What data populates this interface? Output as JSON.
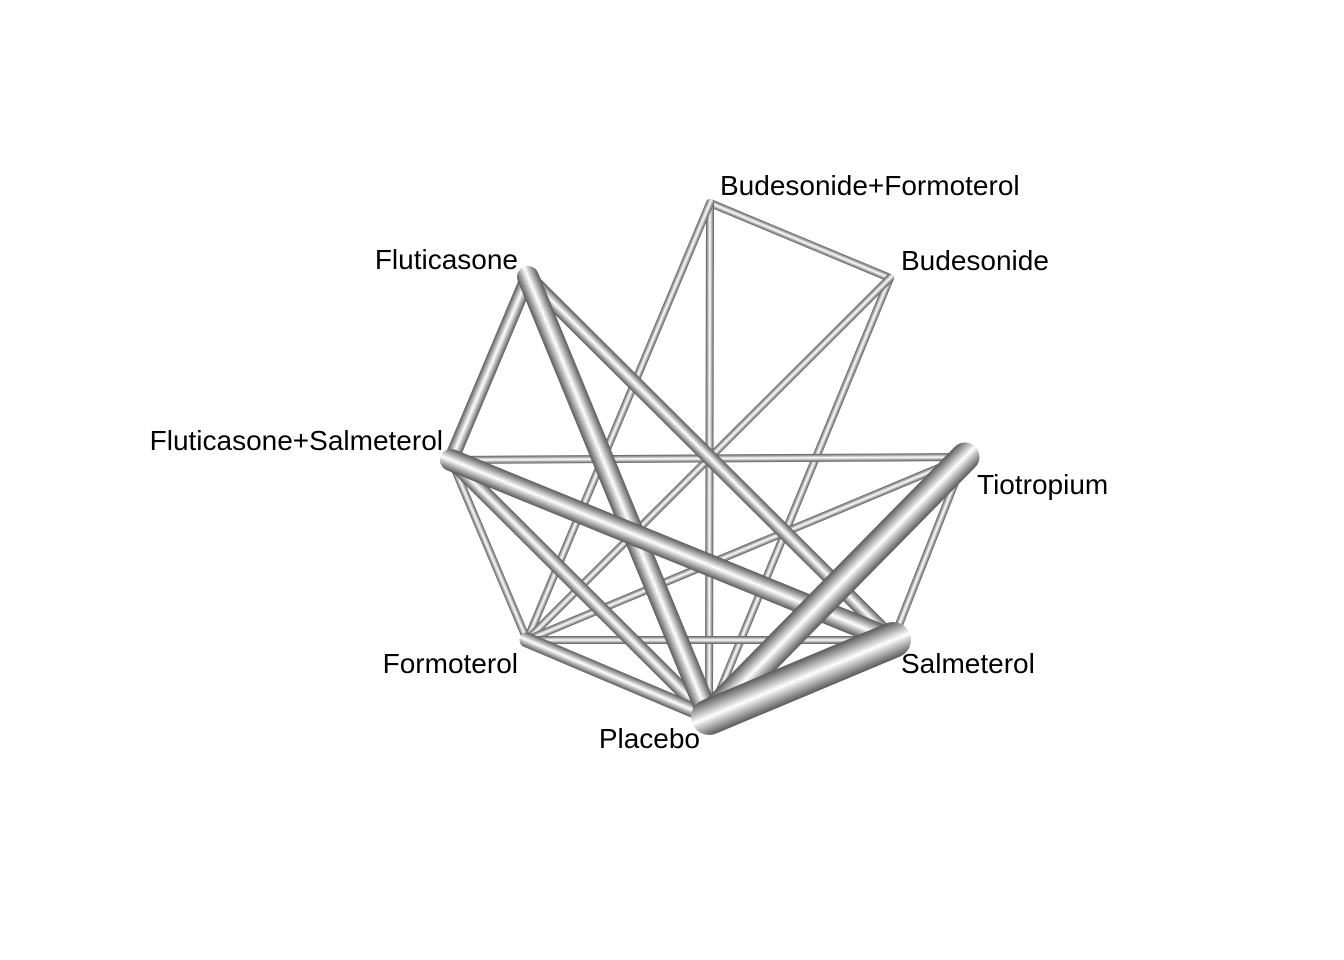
{
  "diagram": {
    "type": "network",
    "nodes": [
      {
        "id": "bud_form",
        "label": "Budesonide+Formoterol"
      },
      {
        "id": "bud",
        "label": "Budesonide"
      },
      {
        "id": "flut",
        "label": "Fluticasone"
      },
      {
        "id": "flut_salm",
        "label": "Fluticasone+Salmeterol"
      },
      {
        "id": "tio",
        "label": "Tiotropium"
      },
      {
        "id": "form",
        "label": "Formoterol"
      },
      {
        "id": "salm",
        "label": "Salmeterol"
      },
      {
        "id": "plac",
        "label": "Placebo"
      }
    ],
    "edges": [
      {
        "from": "bud_form",
        "to": "bud",
        "weight": 1
      },
      {
        "from": "bud_form",
        "to": "plac",
        "weight": 1
      },
      {
        "from": "bud_form",
        "to": "form",
        "weight": 1
      },
      {
        "from": "bud",
        "to": "plac",
        "weight": 1
      },
      {
        "from": "bud",
        "to": "form",
        "weight": 1
      },
      {
        "from": "flut",
        "to": "flut_salm",
        "weight": 2
      },
      {
        "from": "flut",
        "to": "plac",
        "weight": 3
      },
      {
        "from": "flut",
        "to": "salm",
        "weight": 2
      },
      {
        "from": "flut_salm",
        "to": "tio",
        "weight": 1
      },
      {
        "from": "flut_salm",
        "to": "salm",
        "weight": 3
      },
      {
        "from": "flut_salm",
        "to": "plac",
        "weight": 2
      },
      {
        "from": "flut_salm",
        "to": "form",
        "weight": 1
      },
      {
        "from": "tio",
        "to": "salm",
        "weight": 1
      },
      {
        "from": "tio",
        "to": "plac",
        "weight": 4
      },
      {
        "from": "tio",
        "to": "form",
        "weight": 1
      },
      {
        "from": "form",
        "to": "plac",
        "weight": 2
      },
      {
        "from": "form",
        "to": "salm",
        "weight": 1
      },
      {
        "from": "salm",
        "to": "plac",
        "weight": 5
      }
    ],
    "colors": {
      "edge_edge": "#5a5a5a",
      "edge_center": "#ffffff",
      "label": "#000000",
      "background": "#ffffff"
    }
  }
}
